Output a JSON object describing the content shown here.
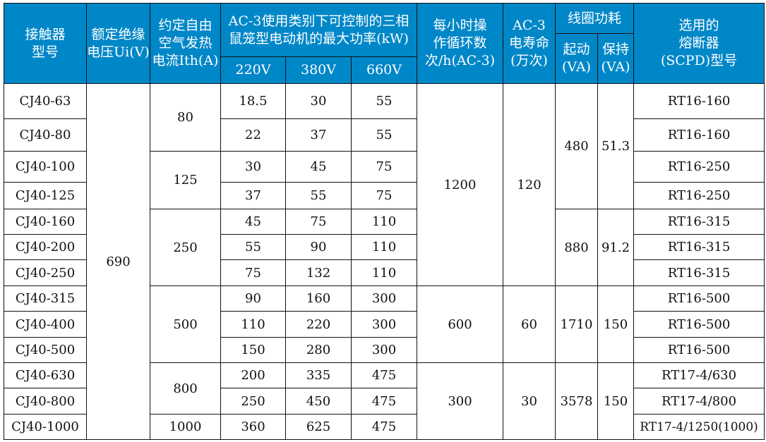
{
  "header": {
    "model": "接触器\n型号",
    "ui": "额定绝缘\n电压Ui(V)",
    "ith": "约定自由\n空气发热\n电流Ith(A)",
    "power": "AC-3使用类别下可控制的三相\n鼠笼型电动机的最大功率(kW)",
    "v220": "220V",
    "v380": "380V",
    "v660": "660V",
    "cycles": "每小时操\n作循环数\n次/h(AC-3)",
    "life": "AC-3\n电寿命\n(万次)",
    "coil": "线圈功耗",
    "start": "起动\n(VA)",
    "hold": "保持\n(VA)",
    "scpd": "选用的\n熔断器\n(SCPD)型号"
  },
  "header_color": "#0087c8",
  "columns": {
    "model": [
      "CJ40-63",
      "CJ40-80",
      "CJ40-100",
      "CJ40-125",
      "CJ40-160",
      "CJ40-200",
      "CJ40-250",
      "CJ40-315",
      "CJ40-400",
      "CJ40-500",
      "CJ40-630",
      "CJ40-800",
      "CJ40-1000"
    ],
    "ui": [
      {
        "value": "690",
        "span": 13
      }
    ],
    "ith": [
      {
        "value": "80",
        "span": 2
      },
      {
        "value": "125",
        "span": 2
      },
      {
        "value": "250",
        "span": 3
      },
      {
        "value": "500",
        "span": 3
      },
      {
        "value": "800",
        "span": 2
      },
      {
        "value": "1000",
        "span": 1
      }
    ],
    "p220": [
      "18.5",
      "22",
      "30",
      "37",
      "45",
      "55",
      "75",
      "90",
      "110",
      "150",
      "200",
      "250",
      "360"
    ],
    "p380": [
      "30",
      "37",
      "45",
      "55",
      "75",
      "90",
      "132",
      "160",
      "220",
      "280",
      "335",
      "450",
      "625"
    ],
    "p660": [
      "55",
      "55",
      "75",
      "75",
      "110",
      "110",
      "110",
      "300",
      "300",
      "300",
      "475",
      "475",
      "475"
    ],
    "cycles": [
      {
        "value": "1200",
        "span": 7
      },
      {
        "value": "600",
        "span": 3
      },
      {
        "value": "300",
        "span": 3
      }
    ],
    "life": [
      {
        "value": "120",
        "span": 7
      },
      {
        "value": "60",
        "span": 3
      },
      {
        "value": "30",
        "span": 3
      }
    ],
    "start": [
      {
        "value": "480",
        "span": 4
      },
      {
        "value": "880",
        "span": 3
      },
      {
        "value": "1710",
        "span": 3
      },
      {
        "value": "3578",
        "span": 3
      }
    ],
    "hold": [
      {
        "value": "51.3",
        "span": 4
      },
      {
        "value": "91.2",
        "span": 3
      },
      {
        "value": "150",
        "span": 3
      },
      {
        "value": "150",
        "span": 3
      }
    ],
    "scpd": [
      "RT16-160",
      "RT16-160",
      "RT16-250",
      "RT16-250",
      "RT16-315",
      "RT16-315",
      "RT16-315",
      "RT16-500",
      "RT16-500",
      "RT16-500",
      "RT17-4/630",
      "RT17-4/800",
      "RT17-4/1250(1000)"
    ]
  }
}
